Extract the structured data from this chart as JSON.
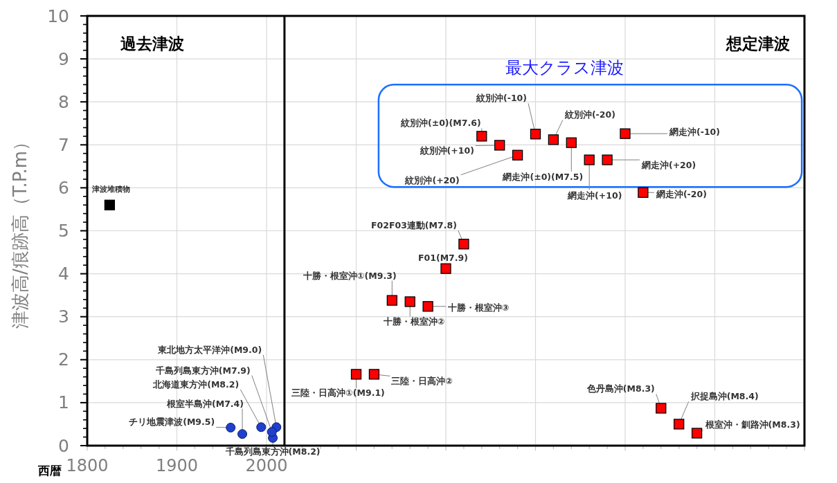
{
  "chart_data": {
    "type": "scatter",
    "xlabel": "西暦",
    "ylabel": "津波高/痕跡高（T.P.m）",
    "xlim": [
      1800,
      2600
    ],
    "ylim": [
      0,
      10
    ],
    "xticks": [
      1800,
      1900,
      2000,
      {
        "value": 2100,
        "label": null
      },
      {
        "value": 2200,
        "label": null
      },
      {
        "value": 2300,
        "label": null
      },
      {
        "value": 2400,
        "label": null
      },
      {
        "value": 2500,
        "label": null
      },
      {
        "value": 2600,
        "label": null
      }
    ],
    "yticks": [
      0,
      1,
      2,
      3,
      4,
      5,
      6,
      7,
      8,
      9,
      10
    ],
    "grid": true,
    "ref_lines": [
      {
        "axis": "x",
        "value": 2020,
        "color": "#000000"
      }
    ],
    "series": [
      {
        "color": "#1f3fcf",
        "marker": "circle",
        "x": [
          1960,
          1973,
          1994,
          2006,
          2007,
          2011
        ],
        "values": [
          0.42,
          0.27,
          0.43,
          0.32,
          0.18,
          0.43
        ]
      },
      {
        "color": "#000000",
        "marker": "square",
        "x": [
          1825
        ],
        "values": [
          5.6
        ]
      },
      {
        "color": "#ff0000",
        "marker": "square",
        "x": [
          2100,
          2120,
          2140,
          2160,
          2180,
          2200,
          2220,
          2240,
          2260,
          2280,
          2300,
          2320,
          2340,
          2360,
          2380,
          2400,
          2420,
          2440,
          2460,
          2480
        ],
        "values": [
          1.66,
          1.66,
          3.38,
          3.35,
          3.24,
          4.12,
          4.69,
          7.2,
          6.99,
          6.76,
          7.25,
          7.12,
          7.05,
          6.65,
          6.65,
          7.26,
          5.89,
          0.87,
          0.5,
          0.29
        ]
      }
    ],
    "annotations": [
      "過去津波",
      "想定津波",
      "最大クラス津波",
      {
        "text": "チリ地震津波(M9.5)",
        "x": 1960,
        "y": 0.42
      },
      {
        "text": "根室半島沖(M7.4)",
        "x": 1973,
        "y": 0.27
      },
      {
        "text": "北海道東方沖(M8.2)",
        "x": 1994,
        "y": 0.43
      },
      {
        "text": "千島列島東方沖(M7.9)",
        "x": 2006,
        "y": 0.32
      },
      {
        "text": "千島列島東方沖(M8.2)",
        "x": 2007,
        "y": 0.18
      },
      {
        "text": "東北地方太平洋沖(M9.0)",
        "x": 2011,
        "y": 0.43
      },
      {
        "text": "津波堆積物",
        "x": 1825,
        "y": 5.6
      },
      {
        "text": "三陸・日高沖①(M9.1)",
        "x": 2100,
        "y": 1.66
      },
      {
        "text": "三陸・日高沖②",
        "x": 2120,
        "y": 1.66
      },
      {
        "text": "十勝・根室沖①(M9.3)",
        "x": 2140,
        "y": 3.38
      },
      {
        "text": "十勝・根室沖②",
        "x": 2160,
        "y": 3.35
      },
      {
        "text": "十勝・根室沖③",
        "x": 2180,
        "y": 3.24
      },
      {
        "text": "F01(M7.9)",
        "x": 2200,
        "y": 4.12
      },
      {
        "text": "F02F03連動(M7.8)",
        "x": 2220,
        "y": 4.69
      },
      {
        "text": "紋別沖(±0)(M7.6)",
        "x": 2240,
        "y": 7.2
      },
      {
        "text": "紋別沖(+10)",
        "x": 2260,
        "y": 6.99
      },
      {
        "text": "紋別沖(+20)",
        "x": 2280,
        "y": 6.76
      },
      {
        "text": "紋別沖(-10)",
        "x": 2300,
        "y": 7.25
      },
      {
        "text": "紋別沖(-20)",
        "x": 2320,
        "y": 7.12
      },
      {
        "text": "網走沖(±0)(M7.5)",
        "x": 2340,
        "y": 7.05
      },
      {
        "text": "網走沖(+10)",
        "x": 2360,
        "y": 6.65
      },
      {
        "text": "網走沖(+20)",
        "x": 2380,
        "y": 6.65
      },
      {
        "text": "網走沖(-10)",
        "x": 2400,
        "y": 7.26
      },
      {
        "text": "網走沖(-20)",
        "x": 2420,
        "y": 5.89
      },
      {
        "text": "色丹島沖(M8.3)",
        "x": 2440,
        "y": 0.87
      },
      {
        "text": "択捉島沖(M8.4)",
        "x": 2460,
        "y": 0.5
      },
      {
        "text": "根室沖・釧路沖(M8.3)",
        "x": 2480,
        "y": 0.29
      }
    ]
  }
}
